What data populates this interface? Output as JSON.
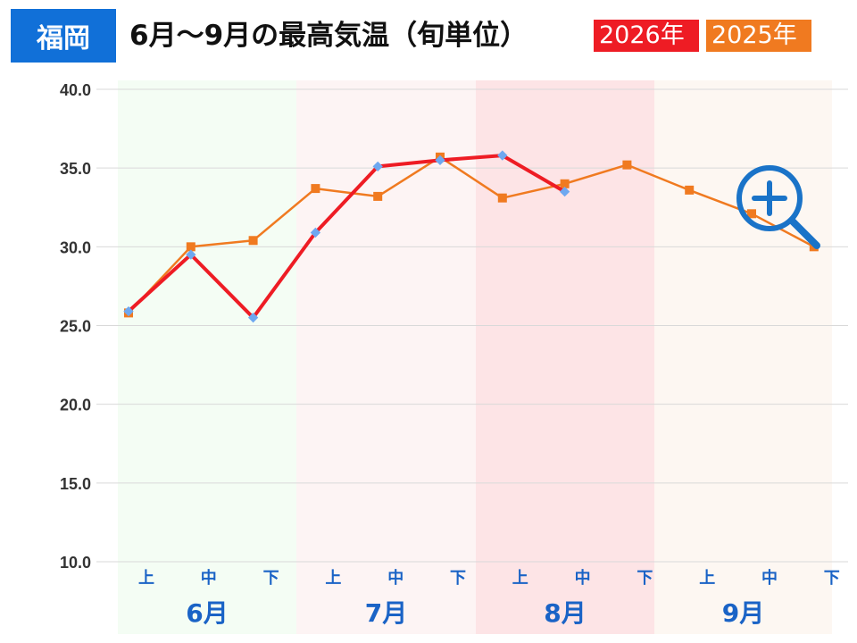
{
  "header": {
    "city": "福岡",
    "title": "6月～9月の最高気温（旬単位）"
  },
  "legend": [
    {
      "label": "2026年",
      "color": "#ee1c24"
    },
    {
      "label": "2025年",
      "color": "#f07a20"
    }
  ],
  "zoom_icon": "zoom-in-icon",
  "chart_data": {
    "type": "line",
    "title": "6月～9月の最高気温（旬単位）",
    "xlabel": "",
    "ylabel": "",
    "ylim": [
      10,
      40
    ],
    "yticks": [
      "40.0",
      "35.0",
      "30.0",
      "25.0",
      "20.0",
      "15.0",
      "10.0"
    ],
    "categories": [
      "上",
      "中",
      "下",
      "上",
      "中",
      "下",
      "上",
      "中",
      "下",
      "上",
      "中",
      "下"
    ],
    "months": [
      {
        "label": "6月",
        "band_color": "#f4fdf4"
      },
      {
        "label": "7月",
        "band_color": "#fdf4f4"
      },
      {
        "label": "8月",
        "band_color": "#fde4e6"
      },
      {
        "label": "9月",
        "band_color": "#fdf7f2"
      }
    ],
    "grid": true,
    "series": [
      {
        "name": "2026年",
        "color": "#ee1c24",
        "marker_color": "#6ea8f0",
        "values": [
          25.9,
          29.5,
          25.5,
          30.9,
          35.1,
          35.5,
          35.8,
          33.5,
          null,
          null,
          null,
          null
        ]
      },
      {
        "name": "2025年",
        "color": "#f07a20",
        "marker_color": "#f07a20",
        "values": [
          25.8,
          30.0,
          30.4,
          33.7,
          33.2,
          35.7,
          33.1,
          34.0,
          35.2,
          33.6,
          32.1,
          30.0
        ]
      }
    ]
  }
}
